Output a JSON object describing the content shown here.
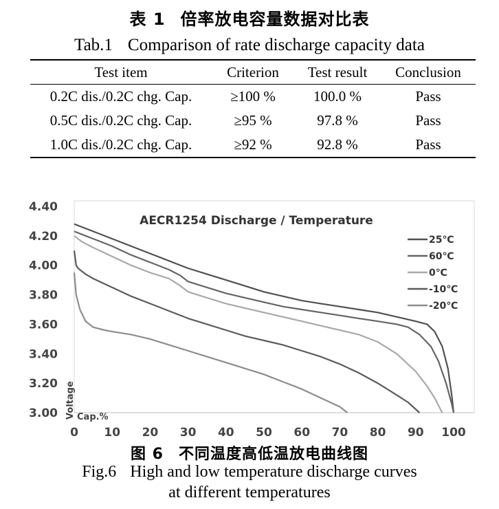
{
  "table": {
    "title_zh_number": "表 1",
    "title_zh_text": "倍率放电容量数据对比表",
    "title_en_number": "Tab.1",
    "title_en_text": "Comparison of rate discharge capacity data",
    "headers": [
      "Test item",
      "Criterion",
      "Test result",
      "Conclusion"
    ],
    "rows": [
      [
        "0.2C dis./0.2C chg. Cap.",
        "≥100 %",
        "100.0 %",
        "Pass"
      ],
      [
        "0.5C dis./0.2C chg. Cap.",
        "≥95 %",
        "97.8 %",
        "Pass"
      ],
      [
        "1.0C dis./0.2C chg. Cap.",
        "≥92 %",
        "92.8 %",
        "Pass"
      ]
    ]
  },
  "figure": {
    "title_zh_number": "图 6",
    "title_zh_text": "不同温度高低温放电曲线图",
    "caption_en_number": "Fig.6",
    "caption_en_line1": "High and low temperature discharge curves",
    "caption_en_line2": "at different temperatures"
  },
  "chart_data": {
    "type": "line",
    "title": "AECR1254 Discharge / Temperature",
    "xlabel": "Cap.%",
    "ylabel": "Voltage",
    "xlim": [
      0,
      100
    ],
    "ylim": [
      3.0,
      4.4
    ],
    "x_ticks": [
      "0",
      "10",
      "20",
      "30",
      "40",
      "50",
      "60",
      "70",
      "80",
      "90",
      "100"
    ],
    "y_ticks": [
      "3.00",
      "3.20",
      "3.40",
      "3.60",
      "3.80",
      "4.00",
      "4.20",
      "4.40"
    ],
    "legend_position": "right",
    "grid": false,
    "series": [
      {
        "name": "25℃",
        "color": "#505050",
        "points": [
          [
            0,
            4.28
          ],
          [
            2,
            4.26
          ],
          [
            5,
            4.23
          ],
          [
            10,
            4.18
          ],
          [
            15,
            4.13
          ],
          [
            20,
            4.08
          ],
          [
            25,
            4.03
          ],
          [
            30,
            3.98
          ],
          [
            35,
            3.94
          ],
          [
            40,
            3.9
          ],
          [
            45,
            3.86
          ],
          [
            50,
            3.82
          ],
          [
            55,
            3.79
          ],
          [
            60,
            3.76
          ],
          [
            65,
            3.74
          ],
          [
            70,
            3.72
          ],
          [
            75,
            3.7
          ],
          [
            80,
            3.68
          ],
          [
            85,
            3.65
          ],
          [
            90,
            3.62
          ],
          [
            93,
            3.6
          ],
          [
            95,
            3.55
          ],
          [
            97,
            3.45
          ],
          [
            98.5,
            3.3
          ],
          [
            99.5,
            3.12
          ],
          [
            100,
            3.0
          ]
        ]
      },
      {
        "name": "60℃",
        "color": "#646464",
        "points": [
          [
            0,
            4.23
          ],
          [
            2,
            4.21
          ],
          [
            5,
            4.18
          ],
          [
            10,
            4.13
          ],
          [
            15,
            4.07
          ],
          [
            20,
            4.02
          ],
          [
            25,
            3.97
          ],
          [
            28,
            3.93
          ],
          [
            30,
            3.89
          ],
          [
            35,
            3.85
          ],
          [
            40,
            3.81
          ],
          [
            45,
            3.78
          ],
          [
            50,
            3.75
          ],
          [
            55,
            3.72
          ],
          [
            60,
            3.7
          ],
          [
            65,
            3.68
          ],
          [
            70,
            3.66
          ],
          [
            75,
            3.64
          ],
          [
            80,
            3.62
          ],
          [
            85,
            3.6
          ],
          [
            88,
            3.58
          ],
          [
            91,
            3.53
          ],
          [
            94,
            3.45
          ],
          [
            96,
            3.35
          ],
          [
            98,
            3.2
          ],
          [
            99.5,
            3.06
          ],
          [
            100,
            3.0
          ]
        ]
      },
      {
        "name": "0℃",
        "color": "#a8a8a8",
        "points": [
          [
            0,
            4.2
          ],
          [
            2,
            4.16
          ],
          [
            5,
            4.12
          ],
          [
            10,
            4.06
          ],
          [
            15,
            4.0
          ],
          [
            20,
            3.95
          ],
          [
            25,
            3.91
          ],
          [
            28,
            3.86
          ],
          [
            30,
            3.82
          ],
          [
            35,
            3.78
          ],
          [
            40,
            3.74
          ],
          [
            45,
            3.71
          ],
          [
            50,
            3.68
          ],
          [
            55,
            3.65
          ],
          [
            60,
            3.62
          ],
          [
            65,
            3.59
          ],
          [
            70,
            3.56
          ],
          [
            75,
            3.53
          ],
          [
            80,
            3.48
          ],
          [
            85,
            3.4
          ],
          [
            90,
            3.28
          ],
          [
            93,
            3.18
          ],
          [
            95,
            3.1
          ],
          [
            97,
            3.0
          ]
        ]
      },
      {
        "name": "-10℃",
        "color": "#5a5a5a",
        "points": [
          [
            0,
            4.1
          ],
          [
            0.5,
            4.0
          ],
          [
            1,
            3.98
          ],
          [
            3,
            3.94
          ],
          [
            5,
            3.91
          ],
          [
            10,
            3.85
          ],
          [
            15,
            3.79
          ],
          [
            20,
            3.74
          ],
          [
            25,
            3.69
          ],
          [
            30,
            3.64
          ],
          [
            35,
            3.6
          ],
          [
            40,
            3.56
          ],
          [
            45,
            3.52
          ],
          [
            50,
            3.49
          ],
          [
            55,
            3.46
          ],
          [
            60,
            3.42
          ],
          [
            65,
            3.38
          ],
          [
            70,
            3.33
          ],
          [
            75,
            3.27
          ],
          [
            80,
            3.2
          ],
          [
            85,
            3.12
          ],
          [
            88,
            3.07
          ],
          [
            91,
            3.0
          ]
        ]
      },
      {
        "name": "-20℃",
        "color": "#8c8c8c",
        "points": [
          [
            0,
            3.95
          ],
          [
            0.5,
            3.8
          ],
          [
            1.5,
            3.7
          ],
          [
            3,
            3.62
          ],
          [
            5,
            3.58
          ],
          [
            8,
            3.56
          ],
          [
            10,
            3.55
          ],
          [
            15,
            3.53
          ],
          [
            20,
            3.5
          ],
          [
            25,
            3.46
          ],
          [
            30,
            3.42
          ],
          [
            35,
            3.38
          ],
          [
            40,
            3.34
          ],
          [
            45,
            3.3
          ],
          [
            50,
            3.26
          ],
          [
            55,
            3.21
          ],
          [
            60,
            3.16
          ],
          [
            65,
            3.1
          ],
          [
            70,
            3.04
          ],
          [
            72,
            3.0
          ]
        ]
      }
    ]
  }
}
